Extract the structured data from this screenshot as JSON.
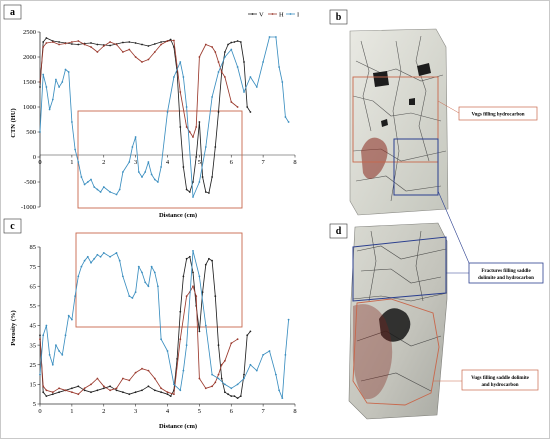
{
  "colors": {
    "V": "#222222",
    "H": "#9b3a2e",
    "I": "#3c8fc0",
    "highlight_box": "#c8684c",
    "fracture_box": "#2b3f8f"
  },
  "panels": {
    "a": "a",
    "b": "b",
    "c": "c",
    "d": "d"
  },
  "annotations": {
    "vugs_top": "Vugs filling hydrocarbon",
    "fractures_line1": "Fractures filling saddle",
    "fractures_line2": "dolimite and hydrocarbon",
    "vugs_bottom_line1": "Vugs filling saddle dolimite",
    "vugs_bottom_line2": "and hydrocarbon"
  },
  "chart_data": [
    {
      "type": "line",
      "panel": "a",
      "xlabel": "Distance (cm)",
      "ylabel": "CTN (HU)",
      "xlim": [
        0,
        8
      ],
      "ylim": [
        -1000,
        2500
      ],
      "xticks": [
        "0",
        "1",
        "2",
        "3",
        "4",
        "5",
        "6",
        "7",
        "8"
      ],
      "yticks": [
        "-1000",
        "-500",
        "0",
        "500",
        "1000",
        "1500",
        "2000",
        "2500"
      ],
      "legend": [
        "V",
        "H",
        "I"
      ],
      "legend_position": "top-right",
      "series": [
        {
          "name": "V",
          "x": [
            0,
            0.1,
            0.2,
            0.4,
            0.6,
            0.8,
            1.0,
            1.2,
            1.4,
            1.6,
            1.8,
            2.0,
            2.2,
            2.4,
            2.6,
            2.8,
            3.0,
            3.2,
            3.4,
            3.6,
            3.8,
            4.0,
            4.1,
            4.2,
            4.3,
            4.4,
            4.5,
            4.6,
            4.7,
            4.8,
            4.9,
            5.0,
            5.1,
            5.2,
            5.3,
            5.4,
            5.5,
            5.6,
            5.7,
            5.8,
            5.9,
            6.0,
            6.1,
            6.2,
            6.3,
            6.4,
            6.5,
            6.6
          ],
          "y": [
            1400,
            2300,
            2380,
            2320,
            2300,
            2280,
            2260,
            2250,
            2270,
            2280,
            2250,
            2240,
            2230,
            2260,
            2290,
            2300,
            2280,
            2250,
            2220,
            2260,
            2300,
            2320,
            2350,
            2200,
            1700,
            600,
            -200,
            -650,
            -700,
            -500,
            0,
            700,
            -400,
            -700,
            -720,
            -400,
            200,
            900,
            1700,
            2100,
            2250,
            2290,
            2300,
            2320,
            2300,
            1900,
            1000,
            900
          ]
        },
        {
          "name": "H",
          "x": [
            0,
            0.1,
            0.2,
            0.4,
            0.6,
            0.8,
            1.0,
            1.2,
            1.4,
            1.6,
            1.8,
            2.0,
            2.2,
            2.4,
            2.6,
            2.8,
            3.0,
            3.2,
            3.4,
            3.6,
            3.8,
            4.0,
            4.2,
            4.4,
            4.6,
            4.7,
            4.8,
            4.9,
            5.0,
            5.2,
            5.4,
            5.5,
            5.6,
            5.7,
            5.8,
            6.0,
            6.2
          ],
          "y": [
            1500,
            2200,
            2280,
            2300,
            2250,
            2270,
            2300,
            2320,
            2250,
            2200,
            2100,
            2220,
            2300,
            2250,
            2100,
            2150,
            2000,
            1900,
            1950,
            2100,
            2250,
            2320,
            2330,
            1300,
            600,
            500,
            400,
            600,
            2000,
            2250,
            2200,
            2100,
            1900,
            1700,
            1600,
            1100,
            1000
          ]
        },
        {
          "name": "I",
          "x": [
            0,
            0.1,
            0.2,
            0.3,
            0.4,
            0.5,
            0.6,
            0.7,
            0.8,
            0.9,
            1.0,
            1.1,
            1.2,
            1.3,
            1.4,
            1.5,
            1.6,
            1.7,
            1.8,
            1.9,
            2.0,
            2.2,
            2.4,
            2.5,
            2.6,
            2.8,
            2.9,
            3.0,
            3.1,
            3.2,
            3.3,
            3.4,
            3.5,
            3.6,
            3.7,
            3.8,
            4.0,
            4.2,
            4.4,
            4.5,
            4.6,
            4.8,
            5.0,
            5.2,
            5.4,
            5.6,
            5.8,
            6.0,
            6.2,
            6.4,
            6.6,
            6.8,
            7.0,
            7.2,
            7.4,
            7.5,
            7.6,
            7.7,
            7.8
          ],
          "y": [
            500,
            1650,
            1400,
            950,
            1150,
            1550,
            1400,
            1500,
            1750,
            1700,
            700,
            150,
            -100,
            -400,
            -550,
            -500,
            -450,
            -600,
            -650,
            -700,
            -600,
            -700,
            -750,
            -650,
            -300,
            -100,
            200,
            400,
            -300,
            -400,
            -300,
            -100,
            -350,
            -450,
            -500,
            -200,
            900,
            1600,
            1900,
            1600,
            1000,
            -800,
            -500,
            200,
            1200,
            1700,
            2000,
            2150,
            1800,
            1300,
            1600,
            1400,
            1900,
            2400,
            2400,
            1800,
            1500,
            800,
            700
          ]
        }
      ]
    },
    {
      "type": "line",
      "panel": "c",
      "xlabel": "Distance (cm)",
      "ylabel": "Porosity (%)",
      "xlim": [
        0,
        8
      ],
      "ylim": [
        5,
        85
      ],
      "xticks": [
        "0",
        "1",
        "2",
        "3",
        "4",
        "5",
        "6",
        "7",
        "8"
      ],
      "yticks": [
        "5",
        "15",
        "25",
        "35",
        "45",
        "55",
        "65",
        "75",
        "85"
      ],
      "series": [
        {
          "name": "V",
          "x": [
            0,
            0.1,
            0.2,
            0.4,
            0.6,
            0.8,
            1.0,
            1.2,
            1.4,
            1.6,
            1.8,
            2.0,
            2.2,
            2.4,
            2.6,
            2.8,
            3.0,
            3.2,
            3.4,
            3.6,
            3.8,
            4.0,
            4.1,
            4.2,
            4.3,
            4.4,
            4.5,
            4.6,
            4.7,
            4.8,
            4.9,
            5.0,
            5.1,
            5.2,
            5.3,
            5.4,
            5.5,
            5.6,
            5.7,
            5.8,
            5.9,
            6.0,
            6.1,
            6.2,
            6.3,
            6.4,
            6.5,
            6.6
          ],
          "y": [
            40,
            11,
            9,
            10,
            11,
            12,
            13,
            14,
            12,
            11,
            12,
            13,
            14,
            12,
            11,
            10,
            11,
            12,
            14,
            12,
            11,
            10,
            9,
            12,
            28,
            52,
            70,
            79,
            80,
            72,
            55,
            42,
            62,
            76,
            79,
            78,
            60,
            35,
            18,
            11,
            10,
            9,
            9,
            8,
            9,
            20,
            40,
            42
          ]
        },
        {
          "name": "H",
          "x": [
            0,
            0.1,
            0.2,
            0.4,
            0.6,
            0.8,
            1.0,
            1.2,
            1.4,
            1.6,
            1.8,
            2.0,
            2.2,
            2.4,
            2.6,
            2.8,
            3.0,
            3.2,
            3.4,
            3.6,
            3.8,
            4.0,
            4.2,
            4.4,
            4.6,
            4.7,
            4.8,
            4.9,
            5.0,
            5.2,
            5.4,
            5.5,
            5.6,
            5.7,
            5.8,
            6.0,
            6.2
          ],
          "y": [
            38,
            14,
            12,
            11,
            13,
            12,
            11,
            10,
            13,
            15,
            18,
            14,
            12,
            13,
            18,
            17,
            21,
            23,
            22,
            18,
            13,
            11,
            10,
            38,
            60,
            62,
            65,
            60,
            18,
            13,
            14,
            16,
            20,
            25,
            27,
            36,
            38
          ]
        },
        {
          "name": "I",
          "x": [
            0,
            0.1,
            0.2,
            0.3,
            0.4,
            0.5,
            0.6,
            0.7,
            0.8,
            0.9,
            1.0,
            1.1,
            1.2,
            1.3,
            1.4,
            1.5,
            1.6,
            1.7,
            1.8,
            1.9,
            2.0,
            2.2,
            2.4,
            2.5,
            2.6,
            2.8,
            2.9,
            3.0,
            3.1,
            3.2,
            3.3,
            3.4,
            3.5,
            3.6,
            3.7,
            3.8,
            4.0,
            4.2,
            4.4,
            4.5,
            4.6,
            4.8,
            5.0,
            5.2,
            5.4,
            5.6,
            5.8,
            6.0,
            6.2,
            6.4,
            6.6,
            6.8,
            7.0,
            7.2,
            7.4,
            7.5,
            7.6,
            7.7,
            7.8
          ],
          "y": [
            20,
            40,
            45,
            30,
            25,
            35,
            32,
            30,
            40,
            50,
            48,
            60,
            70,
            75,
            78,
            80,
            77,
            79,
            81,
            80,
            82,
            80,
            82,
            78,
            70,
            60,
            59,
            62,
            75,
            72,
            67,
            65,
            75,
            72,
            65,
            38,
            32,
            15,
            12,
            22,
            35,
            83,
            70,
            45,
            20,
            18,
            15,
            13,
            15,
            18,
            25,
            22,
            30,
            32,
            20,
            12,
            8,
            30,
            48
          ]
        }
      ]
    }
  ]
}
